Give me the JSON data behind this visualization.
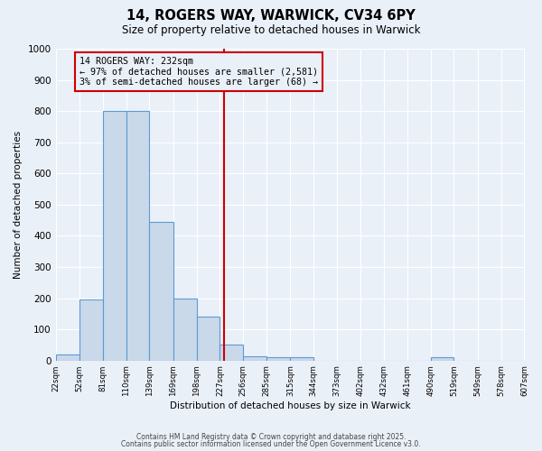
{
  "title": "14, ROGERS WAY, WARWICK, CV34 6PY",
  "subtitle": "Size of property relative to detached houses in Warwick",
  "xlabel": "Distribution of detached houses by size in Warwick",
  "ylabel": "Number of detached properties",
  "property_size": 232,
  "bin_edges": [
    22,
    52,
    81,
    110,
    139,
    169,
    198,
    227,
    256,
    285,
    315,
    344,
    373,
    402,
    432,
    461,
    490,
    519,
    549,
    578,
    607
  ],
  "bar_heights": [
    20,
    195,
    800,
    800,
    445,
    200,
    140,
    50,
    15,
    10,
    10,
    0,
    0,
    0,
    0,
    0,
    10,
    0,
    0,
    0
  ],
  "bar_color": "#c9d9ea",
  "bar_edge_color": "#5b9bd5",
  "vline_color": "#cc0000",
  "annotation_line1": "14 ROGERS WAY: 232sqm",
  "annotation_line2": "← 97% of detached houses are smaller (2,581)",
  "annotation_line3": "3% of semi-detached houses are larger (68) →",
  "annotation_box_edge_color": "#cc0000",
  "background_color": "#eaf0f8",
  "grid_color": "#ffffff",
  "ylim": [
    0,
    1000
  ],
  "yticks": [
    0,
    100,
    200,
    300,
    400,
    500,
    600,
    700,
    800,
    900,
    1000
  ],
  "footer_line1": "Contains HM Land Registry data © Crown copyright and database right 2025.",
  "footer_line2": "Contains public sector information licensed under the Open Government Licence v3.0."
}
